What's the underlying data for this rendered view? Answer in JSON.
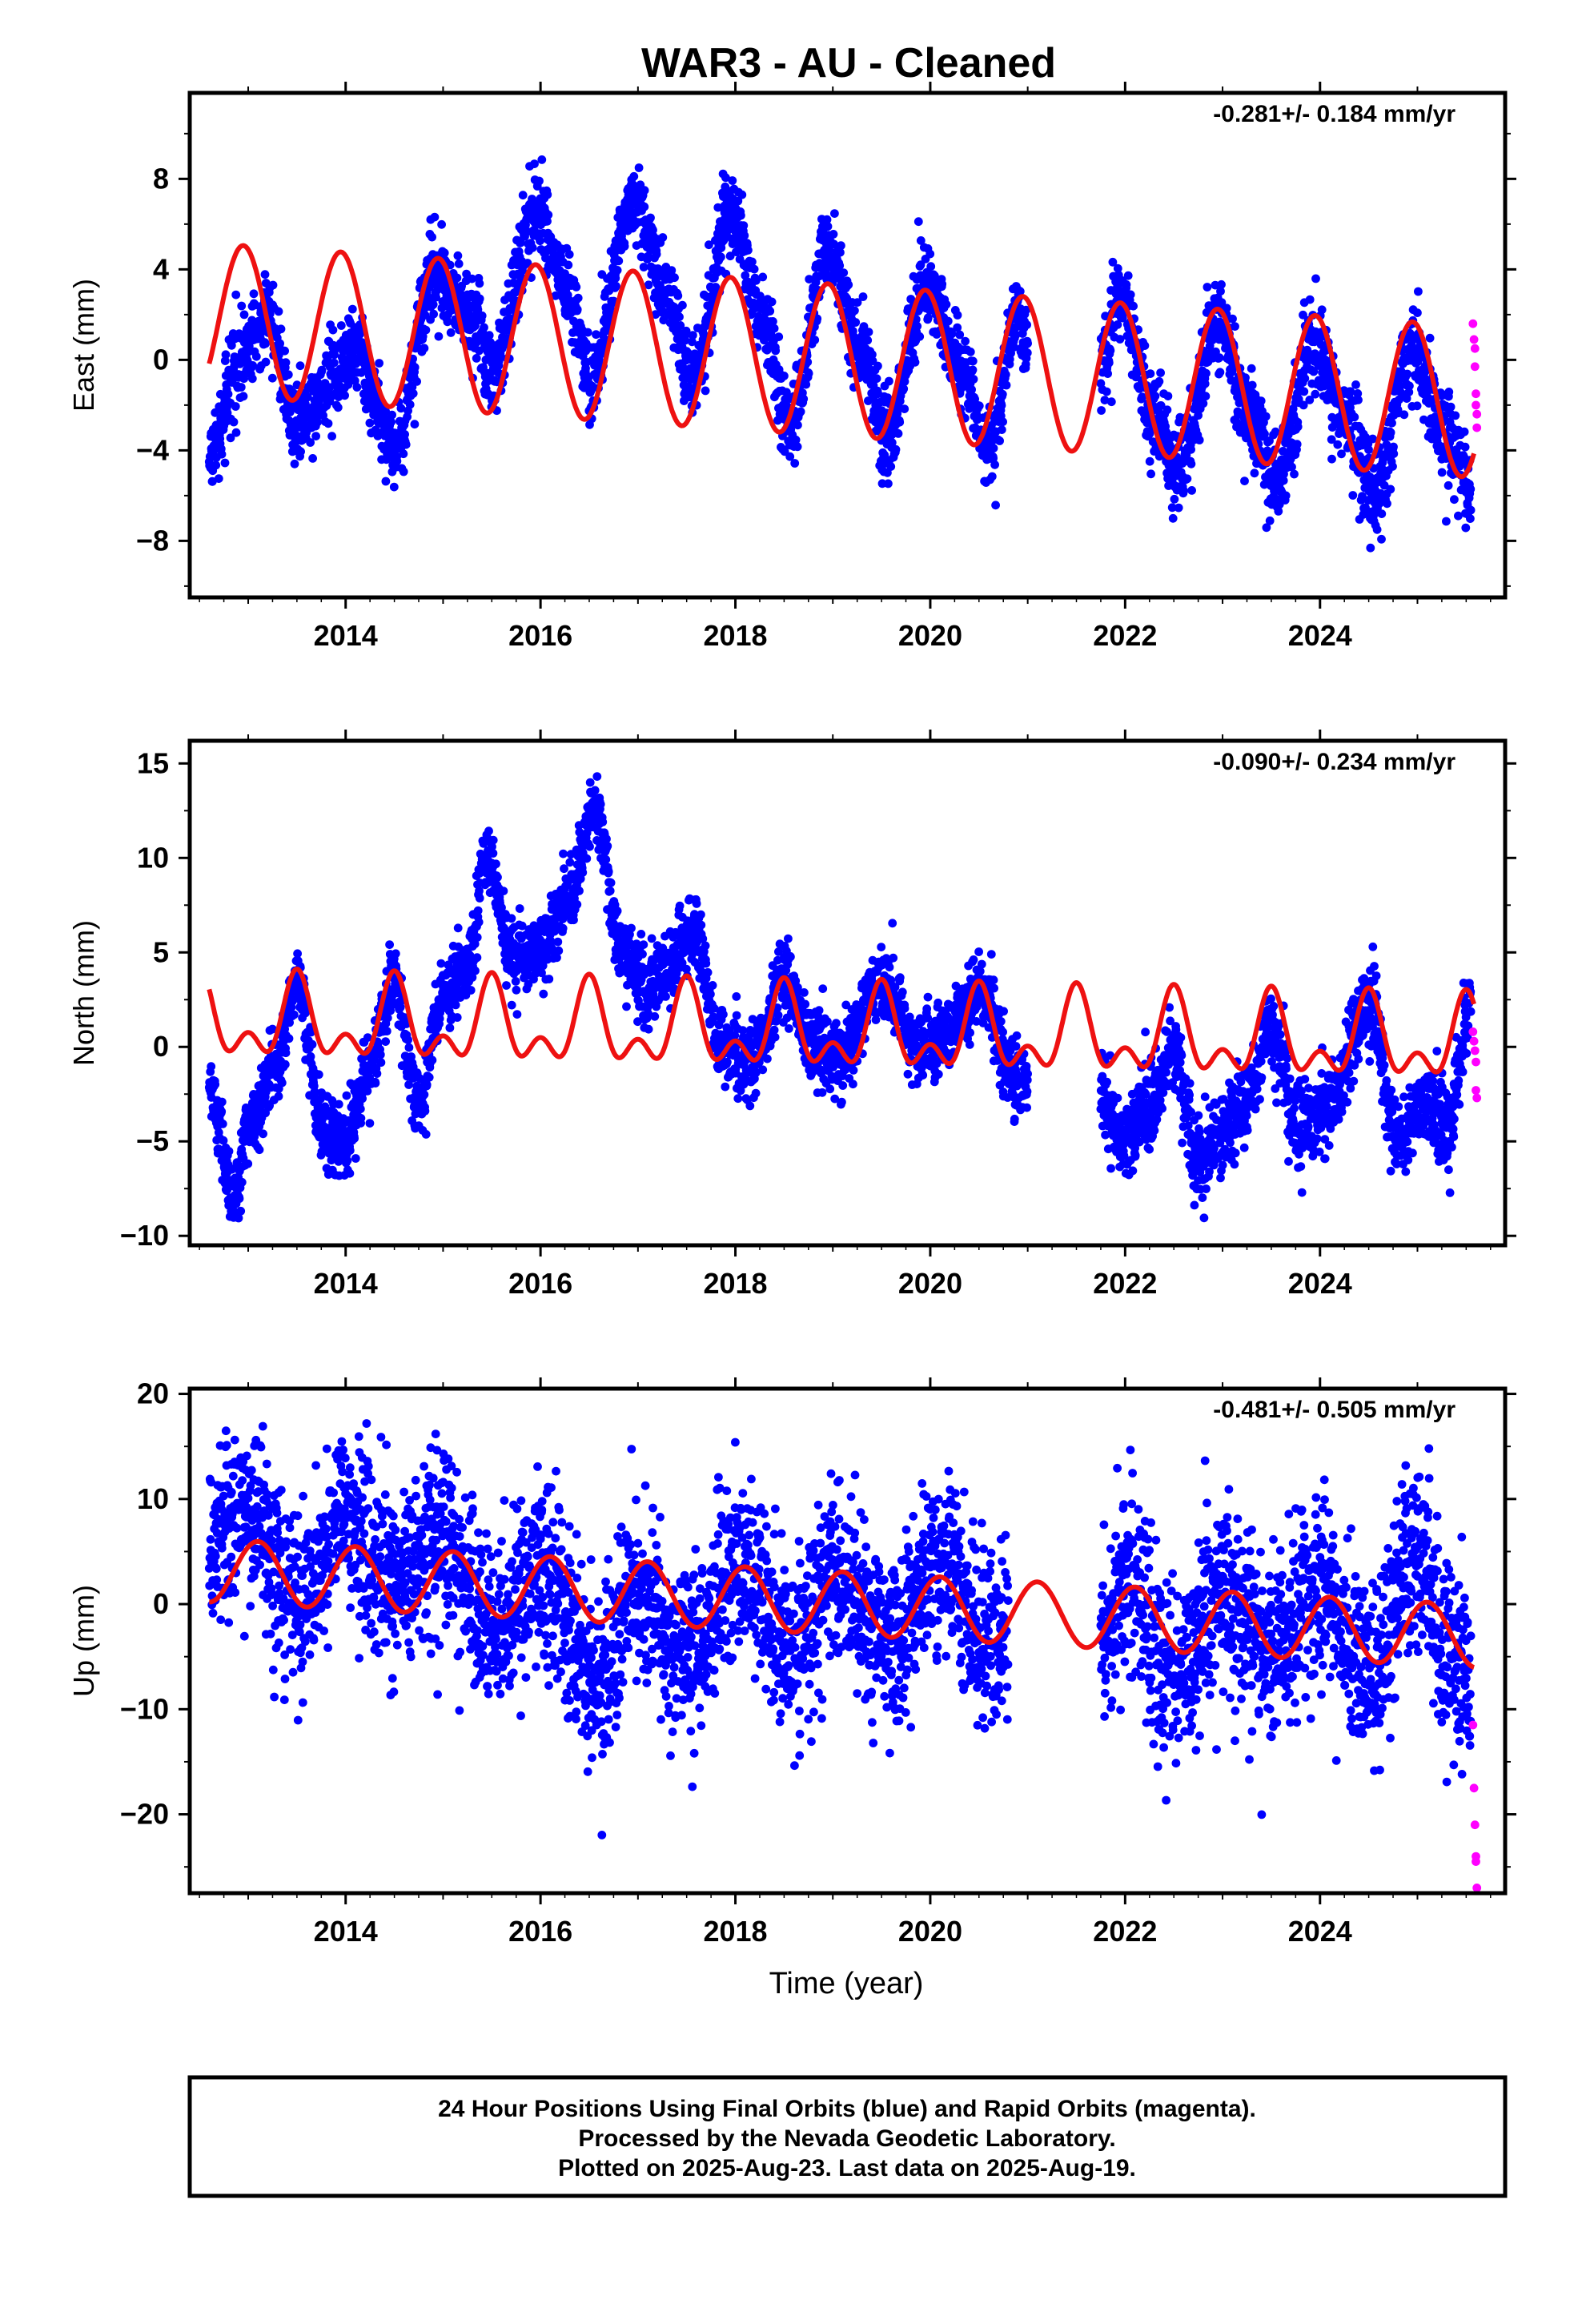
{
  "title": "WAR3  - AU - Cleaned",
  "x_axis_label": "Time (year)",
  "footer": [
    "24 Hour Positions Using Final Orbits (blue) and Rapid Orbits (magenta).",
    "Processed by the Nevada Geodetic Laboratory.",
    "Plotted on 2025-Aug-23. Last data on 2025-Aug-19."
  ],
  "colors": {
    "final_orbits": "#0000ff",
    "rapid_orbits": "#ff00ff",
    "model": "#ee1111",
    "frame": "#000000"
  },
  "chart_data": [
    {
      "type": "scatter",
      "component": "East",
      "ylabel": "East (mm)",
      "rate_label": "-0.281+/- 0.184 mm/yr",
      "xlim": [
        2012.4,
        2025.9
      ],
      "ylim": [
        -10.5,
        11.8
      ],
      "yticks": [
        -8,
        -4,
        0,
        4,
        8
      ],
      "xticks": [
        2014,
        2016,
        2018,
        2020,
        2022,
        2024
      ],
      "series": [
        {
          "role": "final_orbits",
          "anchors": [
            [
              2012.6,
              -4.5
            ],
            [
              2012.9,
              0
            ],
            [
              2013.2,
              1.8
            ],
            [
              2013.5,
              -3
            ],
            [
              2013.8,
              -1
            ],
            [
              2014.1,
              0.3
            ],
            [
              2014.5,
              -4
            ],
            [
              2014.9,
              3.8
            ],
            [
              2015.3,
              2
            ],
            [
              2015.5,
              -0.5
            ],
            [
              2015.95,
              6.5
            ],
            [
              2016.3,
              3
            ],
            [
              2016.5,
              -1
            ],
            [
              2016.95,
              7
            ],
            [
              2017.3,
              3
            ],
            [
              2017.55,
              -0.8
            ],
            [
              2017.95,
              6.3
            ],
            [
              2018.3,
              1.5
            ],
            [
              2018.55,
              -2.8
            ],
            [
              2018.95,
              4.8
            ],
            [
              2019.3,
              0.5
            ],
            [
              2019.55,
              -3.5
            ],
            [
              2019.95,
              3.2
            ],
            [
              2020.35,
              -0.5
            ],
            [
              2020.6,
              -4
            ],
            [
              2020.9,
              2
            ],
            [
              2021.0,
              0.5
            ]
          ],
          "amp": 0.9,
          "gaps": [
            [
              2021.1,
              2021.75
            ]
          ]
        },
        {
          "role": "final_orbits",
          "anchors": [
            [
              2021.75,
              -0.5
            ],
            [
              2021.95,
              2.5
            ],
            [
              2022.3,
              -2.5
            ],
            [
              2022.55,
              -5
            ],
            [
              2022.95,
              1.5
            ],
            [
              2023.3,
              -2.5
            ],
            [
              2023.55,
              -5.5
            ],
            [
              2023.95,
              1
            ],
            [
              2024.3,
              -3
            ],
            [
              2024.55,
              -6
            ],
            [
              2024.95,
              0.5
            ],
            [
              2025.3,
              -3.5
            ],
            [
              2025.55,
              -5.5
            ]
          ],
          "amp": 1.0,
          "gaps": []
        }
      ],
      "model": {
        "offset": 1.8,
        "trend": -0.281,
        "ref_year": 2012.6,
        "annual_amp": 3.35,
        "annual_peak": 2012.95,
        "semi_amp": 0.0,
        "semi_phase": 0.0,
        "x_start": 2012.6,
        "x_end": 2025.58
      },
      "rapid": [
        [
          2025.57,
          1.6
        ],
        [
          2025.58,
          0.9
        ],
        [
          2025.59,
          0.5
        ],
        [
          2025.59,
          -0.3
        ],
        [
          2025.6,
          -1.5
        ],
        [
          2025.6,
          -2
        ],
        [
          2025.61,
          -2.4
        ],
        [
          2025.61,
          -3
        ]
      ]
    },
    {
      "type": "scatter",
      "component": "North",
      "ylabel": "North (mm)",
      "rate_label": "-0.090+/- 0.234 mm/yr",
      "xlim": [
        2012.4,
        2025.9
      ],
      "ylim": [
        -10.5,
        16.2
      ],
      "yticks": [
        -10,
        -5,
        0,
        5,
        10,
        15
      ],
      "xticks": [
        2014,
        2016,
        2018,
        2020,
        2022,
        2024
      ],
      "series": [
        {
          "role": "final_orbits",
          "anchors": [
            [
              2012.6,
              -2
            ],
            [
              2012.85,
              -8
            ],
            [
              2013.0,
              -4
            ],
            [
              2013.3,
              -1
            ],
            [
              2013.5,
              3.5
            ],
            [
              2013.75,
              -4
            ],
            [
              2014.0,
              -5
            ],
            [
              2014.25,
              -1
            ],
            [
              2014.5,
              3.5
            ],
            [
              2014.75,
              -3
            ],
            [
              2015.0,
              2.5
            ],
            [
              2015.25,
              4
            ],
            [
              2015.45,
              10
            ],
            [
              2015.7,
              5
            ],
            [
              2016.0,
              5
            ],
            [
              2016.3,
              8
            ],
            [
              2016.55,
              12.5
            ],
            [
              2016.85,
              5
            ],
            [
              2017.1,
              3
            ],
            [
              2017.3,
              4
            ],
            [
              2017.55,
              6.5
            ],
            [
              2017.85,
              0
            ],
            [
              2018.15,
              -1
            ],
            [
              2018.5,
              3.5
            ],
            [
              2018.8,
              0
            ],
            [
              2019.1,
              -0.5
            ],
            [
              2019.5,
              3.5
            ],
            [
              2019.85,
              0
            ],
            [
              2020.15,
              0.5
            ],
            [
              2020.5,
              3
            ],
            [
              2020.85,
              -1.5
            ],
            [
              2021.0,
              -2
            ]
          ],
          "amp": 0.95,
          "gaps": []
        },
        {
          "role": "final_orbits",
          "anchors": [
            [
              2021.75,
              -2.5
            ],
            [
              2021.95,
              -5
            ],
            [
              2022.25,
              -3
            ],
            [
              2022.5,
              0
            ],
            [
              2022.75,
              -6
            ],
            [
              2023.0,
              -4.5
            ],
            [
              2023.25,
              -3
            ],
            [
              2023.5,
              1
            ],
            [
              2023.8,
              -4.5
            ],
            [
              2024.1,
              -3
            ],
            [
              2024.5,
              2.5
            ],
            [
              2024.8,
              -5
            ],
            [
              2025.1,
              -3
            ],
            [
              2025.3,
              -4.5
            ],
            [
              2025.55,
              2
            ]
          ],
          "amp": 1.1,
          "gaps": []
        }
      ],
      "model": {
        "offset": 1.3,
        "trend": -0.09,
        "ref_year": 2012.6,
        "annual_amp": 1.7,
        "annual_peak": 2013.5,
        "semi_amp": 1.2,
        "semi_phase": 2013.5,
        "x_start": 2012.6,
        "x_end": 2025.58
      },
      "rapid": [
        [
          2025.57,
          0.8
        ],
        [
          2025.58,
          0.3
        ],
        [
          2025.59,
          -0.2
        ],
        [
          2025.6,
          -0.8
        ],
        [
          2025.6,
          -2.3
        ],
        [
          2025.61,
          -2.7
        ]
      ]
    },
    {
      "type": "scatter",
      "component": "Up",
      "ylabel": "Up (mm)",
      "rate_label": "-0.481+/- 0.505 mm/yr",
      "xlim": [
        2012.4,
        2025.9
      ],
      "ylim": [
        -27.5,
        20.5
      ],
      "yticks": [
        -20,
        -10,
        0,
        10,
        20
      ],
      "xticks": [
        2014,
        2016,
        2018,
        2020,
        2022,
        2024
      ],
      "series": [
        {
          "role": "final_orbits",
          "anchors": [
            [
              2012.6,
              6
            ],
            [
              2013.0,
              9
            ],
            [
              2013.5,
              0
            ],
            [
              2014.0,
              8
            ],
            [
              2014.5,
              1
            ],
            [
              2015.0,
              6
            ],
            [
              2015.5,
              -2
            ],
            [
              2016.0,
              3
            ],
            [
              2016.6,
              -7
            ],
            [
              2017.0,
              2
            ],
            [
              2017.5,
              -5
            ],
            [
              2018.0,
              3
            ],
            [
              2018.6,
              -4
            ],
            [
              2019.0,
              3
            ],
            [
              2019.6,
              -4
            ],
            [
              2020.1,
              4
            ],
            [
              2020.6,
              -4
            ],
            [
              2020.8,
              -3
            ]
          ],
          "amp": 4.2,
          "gaps": []
        },
        {
          "role": "final_orbits",
          "anchors": [
            [
              2021.75,
              -4
            ],
            [
              2022.0,
              3
            ],
            [
              2022.5,
              -7
            ],
            [
              2023.0,
              1
            ],
            [
              2023.5,
              -5
            ],
            [
              2024.0,
              2
            ],
            [
              2024.5,
              -7
            ],
            [
              2025.0,
              5
            ],
            [
              2025.3,
              -4
            ],
            [
              2025.55,
              -8
            ]
          ],
          "amp": 4.4,
          "gaps": []
        }
      ],
      "model": {
        "offset": 3.2,
        "trend": -0.481,
        "ref_year": 2012.6,
        "annual_amp": 3.0,
        "annual_peak": 2013.1,
        "semi_amp": 0.0,
        "semi_phase": 0.0,
        "x_start": 2012.6,
        "x_end": 2025.58
      },
      "rapid": [
        [
          2025.57,
          -11.5
        ],
        [
          2025.58,
          -17.5
        ],
        [
          2025.59,
          -21
        ],
        [
          2025.6,
          -24
        ],
        [
          2025.6,
          -24.5
        ],
        [
          2025.61,
          -27
        ]
      ]
    }
  ]
}
